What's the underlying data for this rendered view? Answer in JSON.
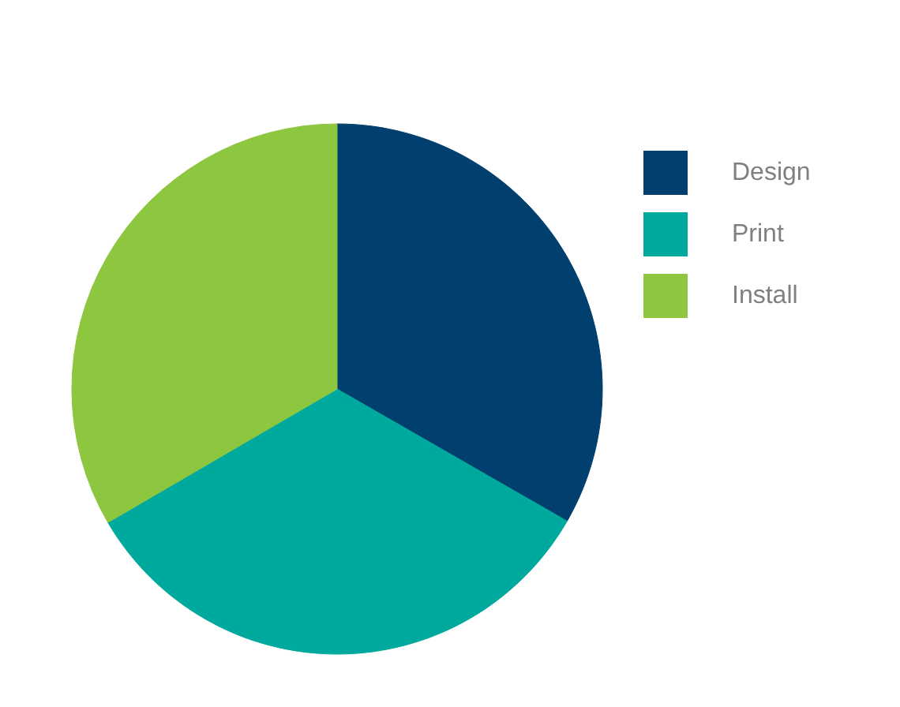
{
  "chart_data": {
    "type": "pie",
    "categories": [
      "Design",
      "Print",
      "Install"
    ],
    "values": [
      33.3,
      33.3,
      33.4
    ],
    "colors": [
      "#003f6e",
      "#00a99d",
      "#8dc63f"
    ],
    "legend": "top right"
  }
}
